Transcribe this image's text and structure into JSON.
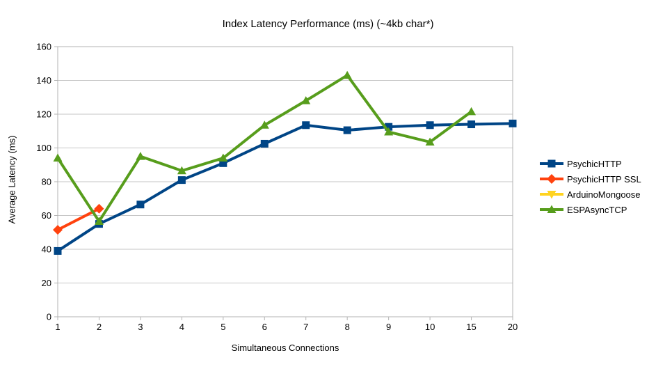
{
  "title": "Index Latency Performance (ms) (~4kb char*)",
  "chart_data": {
    "type": "line",
    "title": "Index Latency Performance (ms) (~4kb char*)",
    "xlabel": "Simultaneous Connections",
    "ylabel": "Average Latency (ms)",
    "ylim": [
      0,
      160
    ],
    "yticks": [
      0,
      20,
      40,
      60,
      80,
      100,
      120,
      140,
      160
    ],
    "grid": "horizontal-only",
    "legend_position": "right",
    "categories": [
      "1",
      "2",
      "3",
      "4",
      "5",
      "6",
      "7",
      "8",
      "9",
      "10",
      "15",
      "20"
    ],
    "series": [
      {
        "name": "PsychicHTTP",
        "color": "#004586",
        "marker": "square",
        "values": [
          39,
          55,
          66.5,
          81,
          91,
          102.5,
          113.5,
          110.5,
          112.5,
          113.5,
          114,
          114.5
        ]
      },
      {
        "name": "PsychicHTTP SSL",
        "color": "#FF420E",
        "marker": "diamond",
        "values": [
          51.5,
          64,
          null,
          null,
          null,
          null,
          null,
          null,
          null,
          null,
          null,
          null
        ]
      },
      {
        "name": "ArduinoMongoose",
        "color": "#FFD320",
        "marker": "triangle-down",
        "values": [
          null,
          null,
          null,
          null,
          null,
          null,
          null,
          null,
          null,
          null,
          null,
          null
        ]
      },
      {
        "name": "ESPAsyncTCP",
        "color": "#579D1C",
        "marker": "triangle-up",
        "values": [
          94,
          56.5,
          95,
          86.5,
          94,
          113.5,
          128,
          143,
          109.5,
          103.5,
          121.5,
          null
        ]
      }
    ],
    "axis_color": "#b3b3b3",
    "grid_color": "#c6c6c6",
    "tick_label_color": "#000000"
  }
}
